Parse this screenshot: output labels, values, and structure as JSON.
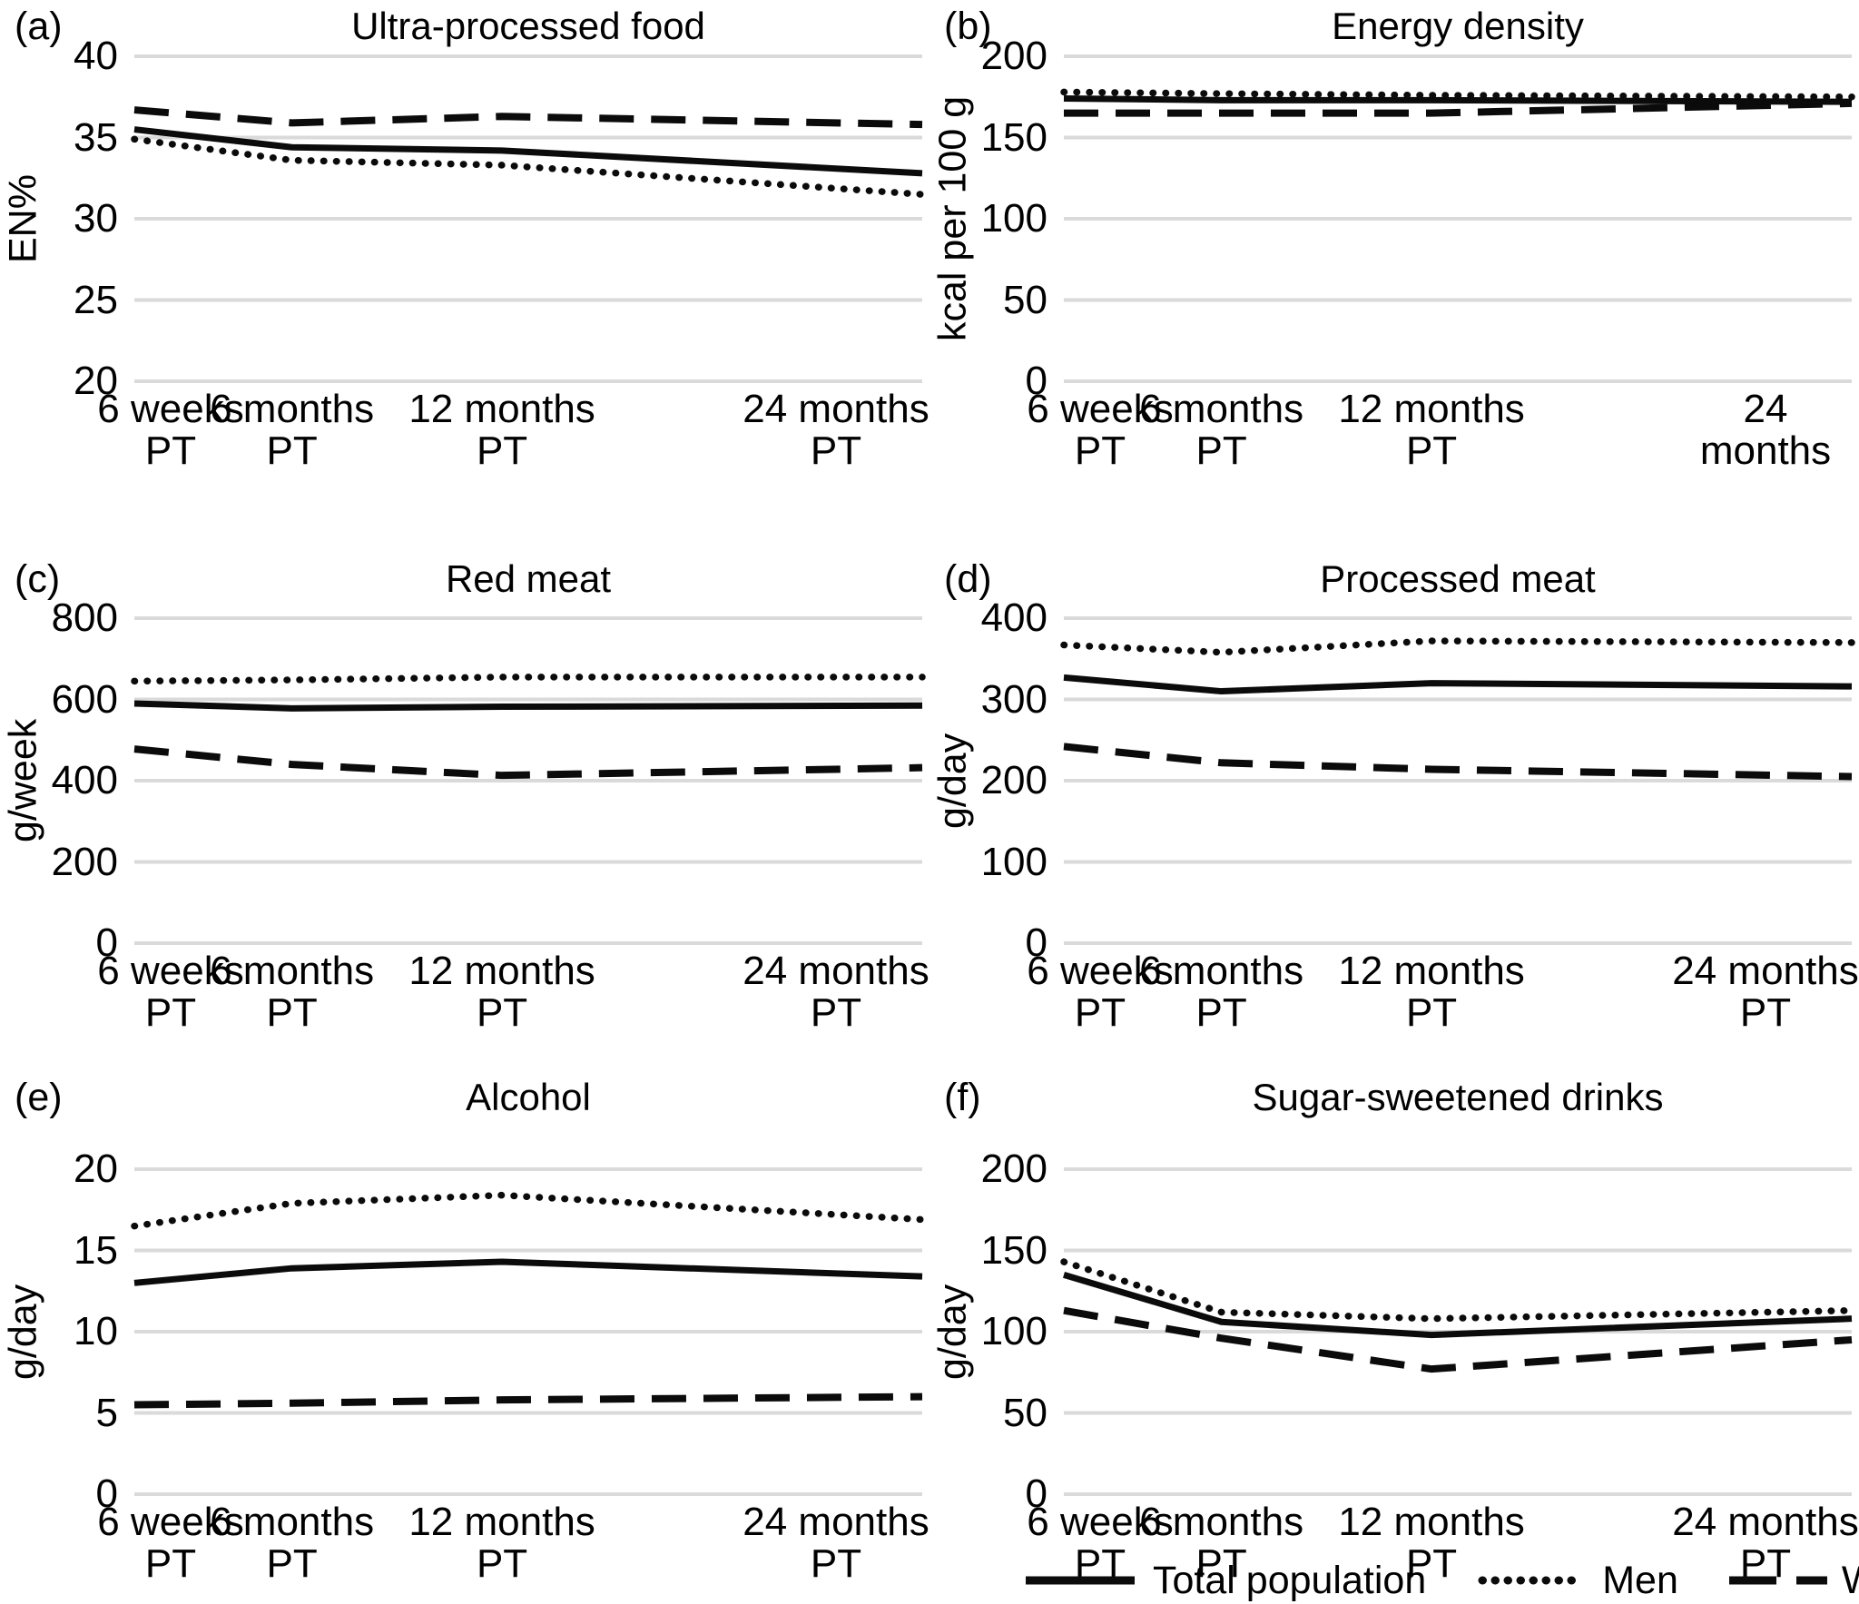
{
  "legend": [
    {
      "label": "Total population",
      "style": "solid"
    },
    {
      "label": "Men",
      "style": "dotted"
    },
    {
      "label": "Women",
      "style": "dashed"
    }
  ],
  "chart_data": [
    {
      "type": "line",
      "panel_label": "(a)",
      "title": "Ultra-processed food",
      "ylabel": "EN%",
      "ylim": [
        20,
        40
      ],
      "yticks": [
        40,
        35,
        30,
        25,
        20
      ],
      "x_months": [
        1.5,
        6,
        12,
        24
      ],
      "xlabels": [
        [
          "6 weeks",
          "PT"
        ],
        [
          "6 months",
          "PT"
        ],
        [
          "12 months",
          "PT"
        ],
        [
          "24 months",
          "PT"
        ]
      ],
      "grid": true,
      "series": [
        {
          "name": "Total population",
          "style": "solid",
          "values": [
            35.5,
            34.4,
            34.2,
            32.8
          ]
        },
        {
          "name": "Men",
          "style": "dotted",
          "values": [
            34.9,
            33.6,
            33.3,
            31.5
          ]
        },
        {
          "name": "Women",
          "style": "dashed",
          "values": [
            36.7,
            35.9,
            36.3,
            35.8
          ]
        }
      ]
    },
    {
      "type": "line",
      "panel_label": "(b)",
      "title": "Energy density",
      "ylabel": "kcal per 100 g",
      "ylim": [
        0,
        200
      ],
      "yticks": [
        200,
        150,
        100,
        50,
        0
      ],
      "x_months": [
        1.5,
        6,
        12,
        24
      ],
      "xlabels": [
        [
          "6 weeks",
          "PT"
        ],
        [
          "6 months",
          "PT"
        ],
        [
          "12 months",
          "PT"
        ],
        [
          "24",
          "months"
        ]
      ],
      "grid": true,
      "series": [
        {
          "name": "Total population",
          "style": "solid",
          "values": [
            174,
            173,
            173,
            172
          ]
        },
        {
          "name": "Men",
          "style": "dotted",
          "values": [
            178,
            177,
            176,
            175
          ]
        },
        {
          "name": "Women",
          "style": "dashed",
          "values": [
            165,
            165,
            165,
            171
          ]
        }
      ]
    },
    {
      "type": "line",
      "panel_label": "(c)",
      "title": "Red meat",
      "ylabel": "g/week",
      "ylim": [
        0,
        800
      ],
      "yticks": [
        800,
        600,
        400,
        200,
        0
      ],
      "x_months": [
        1.5,
        6,
        12,
        24
      ],
      "xlabels": [
        [
          "6 weeks",
          "PT"
        ],
        [
          "6 months",
          "PT"
        ],
        [
          "12 months",
          "PT"
        ],
        [
          "24 months",
          "PT"
        ]
      ],
      "grid": true,
      "series": [
        {
          "name": "Total population",
          "style": "solid",
          "values": [
            590,
            578,
            582,
            585
          ]
        },
        {
          "name": "Men",
          "style": "dotted",
          "values": [
            645,
            648,
            655,
            655
          ]
        },
        {
          "name": "Women",
          "style": "dashed",
          "values": [
            478,
            440,
            413,
            432
          ]
        }
      ]
    },
    {
      "type": "line",
      "panel_label": "(d)",
      "title": "Processed meat",
      "ylabel": "g/day",
      "ylim": [
        0,
        400
      ],
      "yticks": [
        400,
        300,
        200,
        100,
        0
      ],
      "x_months": [
        1.5,
        6,
        12,
        24
      ],
      "xlabels": [
        [
          "6 weeks",
          "PT"
        ],
        [
          "6 months",
          "PT"
        ],
        [
          "12 months",
          "PT"
        ],
        [
          "24 months",
          "PT"
        ]
      ],
      "grid": true,
      "series": [
        {
          "name": "Total population",
          "style": "solid",
          "values": [
            327,
            310,
            320,
            316
          ]
        },
        {
          "name": "Men",
          "style": "dotted",
          "values": [
            367,
            358,
            372,
            370
          ]
        },
        {
          "name": "Women",
          "style": "dashed",
          "values": [
            242,
            222,
            214,
            205
          ]
        }
      ]
    },
    {
      "type": "line",
      "panel_label": "(e)",
      "title": "Alcohol",
      "ylabel": "g/day",
      "ylim": [
        0,
        20
      ],
      "yticks": [
        20,
        15,
        10,
        5,
        0
      ],
      "x_months": [
        1.5,
        6,
        12,
        24
      ],
      "xlabels": [
        [
          "6 weeks",
          "PT"
        ],
        [
          "6 months",
          "PT"
        ],
        [
          "12 months",
          "PT"
        ],
        [
          "24 months",
          "PT"
        ]
      ],
      "grid": true,
      "series": [
        {
          "name": "Total population",
          "style": "solid",
          "values": [
            13.0,
            13.9,
            14.3,
            13.4
          ]
        },
        {
          "name": "Men",
          "style": "dotted",
          "values": [
            16.5,
            17.9,
            18.4,
            16.9
          ]
        },
        {
          "name": "Women",
          "style": "dashed",
          "values": [
            5.5,
            5.6,
            5.8,
            6.0
          ]
        }
      ]
    },
    {
      "type": "line",
      "panel_label": "(f)",
      "title": "Sugar-sweetened drinks",
      "ylabel": "g/day",
      "ylim": [
        0,
        200
      ],
      "yticks": [
        200,
        150,
        100,
        50,
        0
      ],
      "x_months": [
        1.5,
        6,
        12,
        24
      ],
      "xlabels": [
        [
          "6 weeks",
          "PT"
        ],
        [
          "6 months",
          "PT"
        ],
        [
          "12 months",
          "PT"
        ],
        [
          "24 months",
          "PT"
        ]
      ],
      "grid": true,
      "series": [
        {
          "name": "Total population",
          "style": "solid",
          "values": [
            135,
            106,
            98,
            108
          ]
        },
        {
          "name": "Men",
          "style": "dotted",
          "values": [
            143,
            112,
            108,
            113
          ]
        },
        {
          "name": "Women",
          "style": "dashed",
          "values": [
            113,
            96,
            77,
            95
          ]
        }
      ]
    }
  ]
}
